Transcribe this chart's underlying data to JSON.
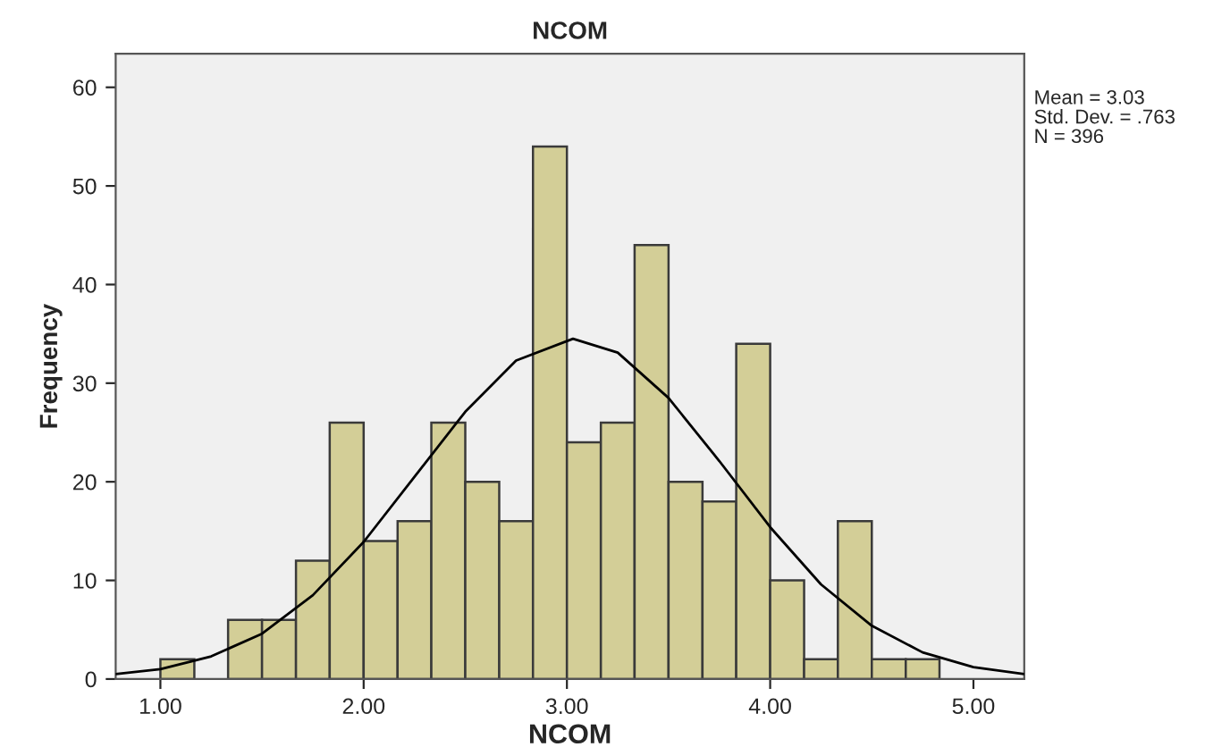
{
  "chart_data": {
    "type": "histogram",
    "title": "NCOM",
    "xlabel": "NCOM",
    "ylabel": "Frequency",
    "bins": [
      1.0,
      1.167,
      1.333,
      1.5,
      1.667,
      1.833,
      2.0,
      2.167,
      2.333,
      2.5,
      2.667,
      2.833,
      3.0,
      3.167,
      3.333,
      3.5,
      3.667,
      3.833,
      4.0,
      4.167,
      4.333,
      4.5,
      4.667,
      4.833
    ],
    "series": [
      {
        "type": "histogram",
        "color": "#d3ce97",
        "values": [
          2,
          0,
          6,
          6,
          12,
          26,
          14,
          16,
          26,
          20,
          16,
          54,
          24,
          26,
          44,
          20,
          18,
          34,
          10,
          2,
          16,
          2,
          2
        ]
      },
      {
        "type": "line",
        "color": "#000000",
        "x": [
          0.78,
          1.0,
          1.25,
          1.5,
          1.75,
          2.0,
          2.25,
          2.5,
          2.75,
          3.03,
          3.25,
          3.5,
          3.75,
          4.0,
          4.25,
          4.5,
          4.75,
          5.0,
          5.25
        ],
        "values": [
          0.5,
          1.0,
          2.3,
          4.6,
          8.5,
          13.9,
          20.5,
          27.1,
          32.3,
          34.5,
          33.1,
          28.5,
          22.1,
          15.4,
          9.6,
          5.4,
          2.7,
          1.2,
          0.5
        ]
      }
    ],
    "xlim": [
      0.78,
      5.25
    ],
    "ylim": [
      0,
      63.4
    ],
    "xticks": [
      {
        "value": 1,
        "label": "1.00"
      },
      {
        "value": 2,
        "label": "2.00"
      },
      {
        "value": 3,
        "label": "3.00"
      },
      {
        "value": 4,
        "label": "4.00"
      },
      {
        "value": 5,
        "label": "5.00"
      }
    ],
    "yticks": [
      0,
      10,
      20,
      30,
      40,
      50,
      60
    ],
    "grid": false,
    "annotations": [
      "Mean = 3.03",
      "Std. Dev. = .763",
      "N = 396"
    ]
  }
}
